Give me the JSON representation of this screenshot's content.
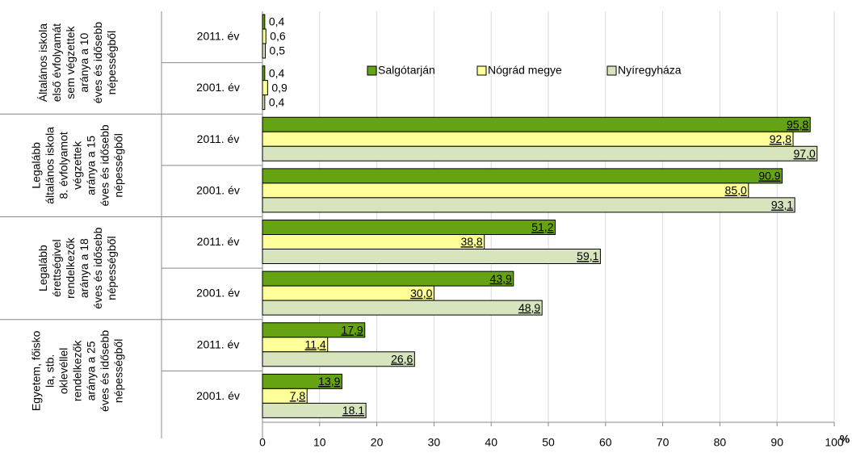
{
  "chart_data": {
    "type": "bar",
    "orientation": "horizontal",
    "groups": [
      {
        "label": [
          "Általános iskola",
          "első évfolyamát",
          "sem végzettek",
          "aránya a 10",
          "éves és idősebb",
          "népességből"
        ]
      },
      {
        "label": [
          "Legalább",
          "általános iskola",
          "8. évfolyamot",
          "végzettek",
          "aránya a 15",
          "éves és idősebb",
          "népességből"
        ]
      },
      {
        "label": [
          "Legalább",
          "érettségivel",
          "rendelkezők",
          "aránya a 18",
          "éves és idősebb",
          "népességből"
        ]
      },
      {
        "label": [
          "Egyetem, főisko",
          "la, stb.",
          "oklevéllel",
          "rendelkezők",
          "aránya a 25",
          "éves és idősebb",
          "népességből"
        ]
      }
    ],
    "categories": [
      "2011. év",
      "2001. év",
      "2011. év",
      "2001. év",
      "2011. év",
      "2001. év",
      "2011. év",
      "2001. év"
    ],
    "series": [
      {
        "name": "Salgótarján",
        "color": "#66a313",
        "values": [
          0.4,
          0.4,
          95.8,
          90.9,
          51.2,
          43.9,
          17.9,
          13.9
        ],
        "value_labels": [
          "0,4",
          "0,4",
          "95,8",
          "90.9",
          "51,2",
          "43,9",
          "17,9",
          "13,9"
        ]
      },
      {
        "name": "Nógrád megye",
        "color": "#ffff99",
        "values": [
          0.6,
          0.9,
          92.8,
          85.0,
          38.8,
          30.0,
          11.4,
          7.8
        ],
        "value_labels": [
          "0,6",
          "0,9",
          "92,8",
          "85,0",
          "38,8",
          "30,0",
          "11,4",
          "7,8"
        ]
      },
      {
        "name": "Nyíregyháza",
        "color": "#d7e4bd",
        "values": [
          0.5,
          0.4,
          97.0,
          93.1,
          59.1,
          48.9,
          26.6,
          18.1
        ],
        "value_labels": [
          "0,5",
          "0,4",
          "97,0",
          "93,1",
          "59,1",
          "48,9",
          "26,6",
          "18.1"
        ]
      }
    ],
    "xlim": [
      0,
      100
    ],
    "xticks": [
      0,
      10,
      20,
      30,
      40,
      50,
      60,
      70,
      80,
      90,
      100
    ],
    "xlabel": "%",
    "grid": true,
    "legend": "top"
  }
}
